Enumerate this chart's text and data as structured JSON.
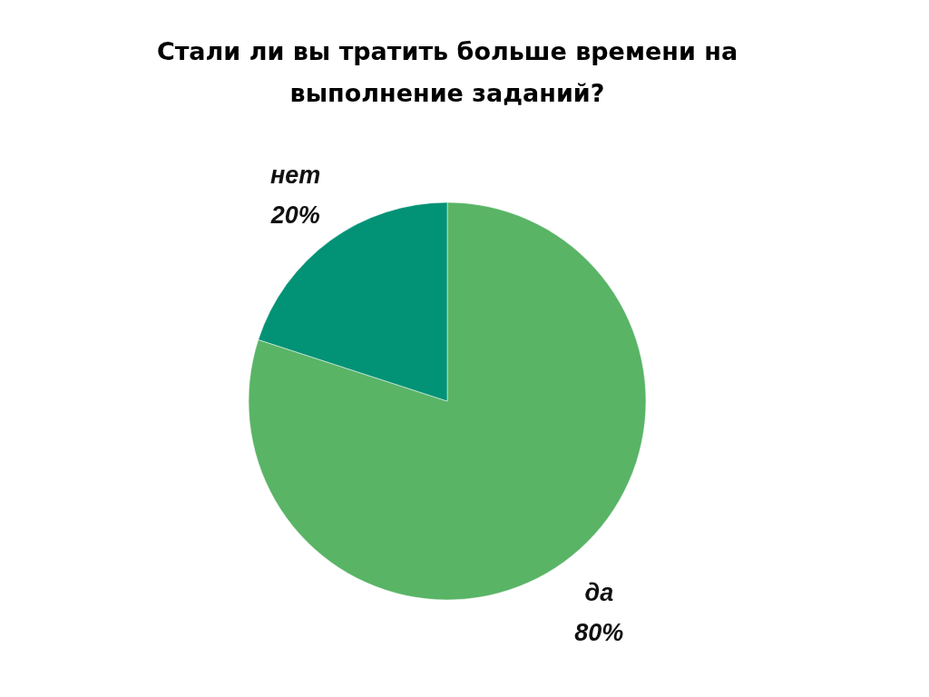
{
  "chart_data": {
    "type": "pie",
    "title": "Стали ли вы тратить больше времени на выполнение заданий?",
    "categories": [
      "да",
      "нет"
    ],
    "values": [
      80,
      20
    ],
    "value_labels": [
      "80%",
      "20%"
    ],
    "colors": [
      "#59b466",
      "#029276"
    ]
  }
}
